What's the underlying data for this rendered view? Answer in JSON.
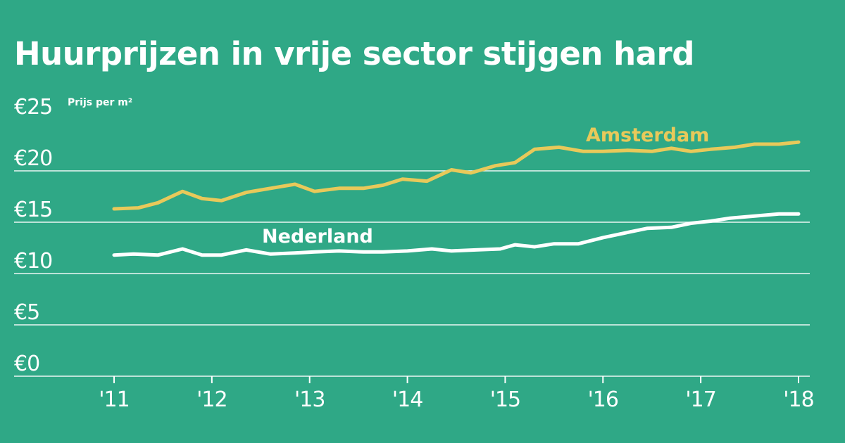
{
  "chart_data": {
    "type": "line",
    "title": "Huurprijzen in vrije sector stijgen hard",
    "ylabel": "Prijs per m²",
    "ylim": [
      0,
      25
    ],
    "yticks": [
      0,
      5,
      10,
      15,
      20,
      25
    ],
    "ytick_labels": [
      "€0",
      "€5",
      "€10",
      "€15",
      "€20",
      "€25"
    ],
    "xlim": [
      2011,
      2018
    ],
    "xticks": [
      2011,
      2012,
      2013,
      2014,
      2015,
      2016,
      2017,
      2018
    ],
    "xtick_labels": [
      "'11",
      "'12",
      "'13",
      "'14",
      "'15",
      "'16",
      "'17",
      "'18"
    ],
    "grid": true,
    "series": [
      {
        "name": "Amsterdam",
        "color": "#e8c95a",
        "x": [
          2011.0,
          2011.25,
          2011.45,
          2011.7,
          2011.9,
          2012.1,
          2012.35,
          2012.6,
          2012.85,
          2013.05,
          2013.3,
          2013.55,
          2013.75,
          2013.95,
          2014.2,
          2014.45,
          2014.65,
          2014.9,
          2015.1,
          2015.3,
          2015.55,
          2015.8,
          2016.0,
          2016.25,
          2016.5,
          2016.7,
          2016.9,
          2017.1,
          2017.35,
          2017.55,
          2017.8,
          2018.0
        ],
        "values": [
          16.3,
          16.4,
          16.9,
          18.0,
          17.3,
          17.1,
          17.9,
          18.3,
          18.7,
          18.0,
          18.3,
          18.3,
          18.6,
          19.2,
          19.0,
          20.1,
          19.8,
          20.5,
          20.8,
          22.1,
          22.3,
          21.9,
          21.9,
          22.0,
          21.9,
          22.2,
          21.9,
          22.1,
          22.3,
          22.6,
          22.6,
          22.8
        ]
      },
      {
        "name": "Nederland",
        "color": "#ffffff",
        "x": [
          2011.0,
          2011.2,
          2011.45,
          2011.7,
          2011.9,
          2012.1,
          2012.35,
          2012.6,
          2012.85,
          2013.05,
          2013.3,
          2013.55,
          2013.75,
          2014.0,
          2014.25,
          2014.45,
          2014.7,
          2014.95,
          2015.1,
          2015.3,
          2015.5,
          2015.75,
          2016.0,
          2016.25,
          2016.45,
          2016.7,
          2016.9,
          2017.1,
          2017.3,
          2017.55,
          2017.8,
          2018.0
        ],
        "values": [
          11.8,
          11.9,
          11.8,
          12.4,
          11.8,
          11.8,
          12.3,
          11.9,
          12.0,
          12.1,
          12.2,
          12.1,
          12.1,
          12.2,
          12.4,
          12.2,
          12.3,
          12.4,
          12.8,
          12.6,
          12.9,
          12.9,
          13.5,
          14.0,
          14.4,
          14.5,
          14.9,
          15.1,
          15.4,
          15.6,
          15.8,
          15.8
        ]
      }
    ]
  }
}
